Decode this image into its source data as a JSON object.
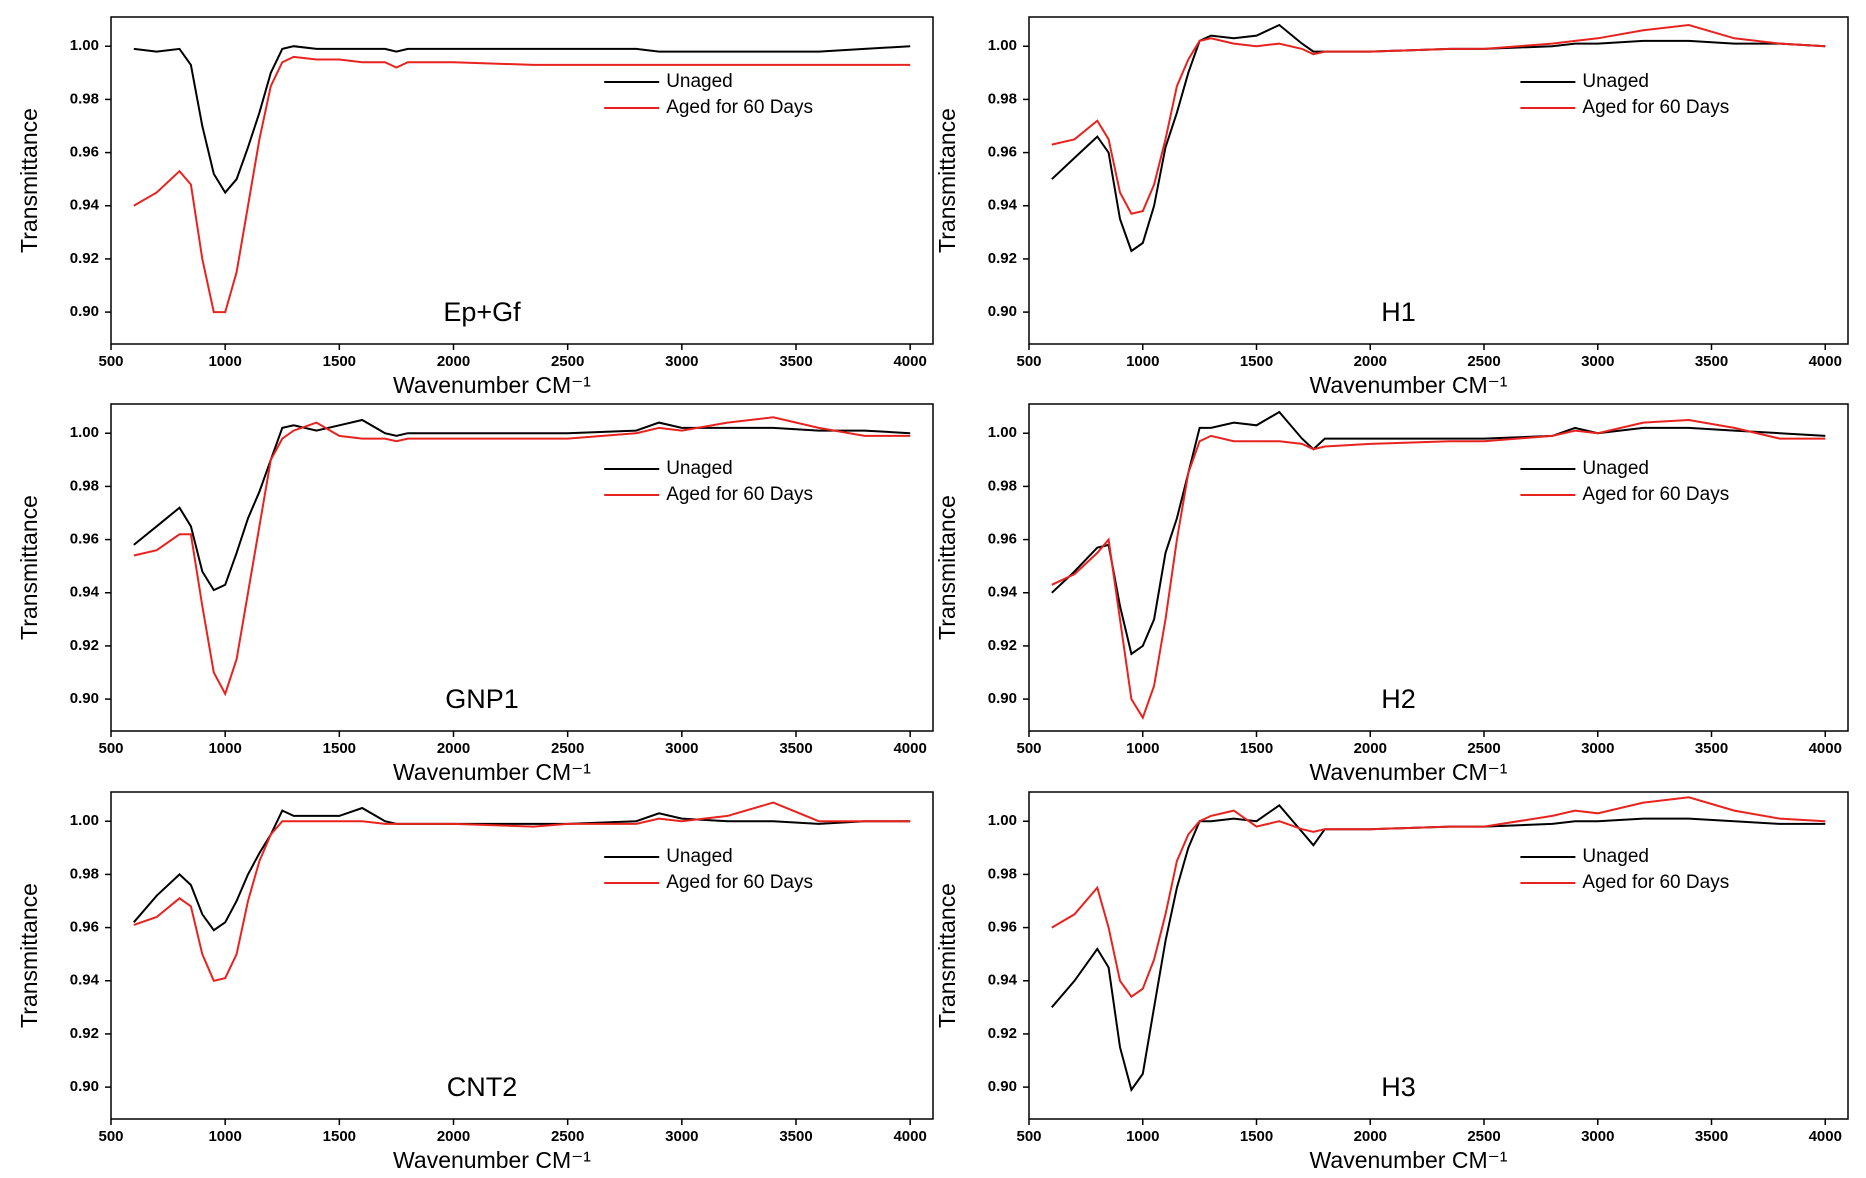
{
  "chart_data": [
    {
      "type": "line",
      "title": "Ep+Gf",
      "xlabel": "Wavenumber CM⁻¹",
      "ylabel": "Transmittance",
      "x": [
        600,
        700,
        800,
        850,
        900,
        950,
        1000,
        1050,
        1100,
        1150,
        1200,
        1250,
        1300,
        1400,
        1500,
        1600,
        1700,
        1750,
        1800,
        2000,
        2350,
        2500,
        2800,
        2900,
        3000,
        3200,
        3400,
        3600,
        3800,
        4000
      ],
      "series": [
        {
          "name": "Unaged",
          "color": "#000000",
          "values": [
            0.999,
            0.998,
            0.999,
            0.993,
            0.97,
            0.952,
            0.945,
            0.95,
            0.962,
            0.975,
            0.99,
            0.999,
            1.0,
            0.999,
            0.999,
            0.999,
            0.999,
            0.998,
            0.999,
            0.999,
            0.999,
            0.999,
            0.999,
            0.998,
            0.998,
            0.998,
            0.998,
            0.998,
            0.999,
            1.0
          ]
        },
        {
          "name": "Aged for 60 Days",
          "color": "#e8231f",
          "values": [
            0.94,
            0.945,
            0.953,
            0.948,
            0.92,
            0.9,
            0.9,
            0.915,
            0.94,
            0.965,
            0.985,
            0.994,
            0.996,
            0.995,
            0.995,
            0.994,
            0.994,
            0.992,
            0.994,
            0.994,
            0.993,
            0.993,
            0.993,
            0.993,
            0.993,
            0.993,
            0.993,
            0.993,
            0.993,
            0.993
          ]
        }
      ],
      "xlim": [
        500,
        4100
      ],
      "xticks": [
        500,
        1000,
        1500,
        2000,
        2500,
        3000,
        3500,
        4000
      ],
      "ylim": [
        0.888,
        1.011
      ],
      "yticks": [
        {
          "value": 0.9,
          "label": "0.90"
        },
        0.92,
        0.94,
        0.96,
        0.98,
        {
          "value": 1,
          "label": "1.00"
        }
      ],
      "grid": false,
      "legend": "upper right"
    },
    {
      "type": "line",
      "title": "H1",
      "xlabel": "Wavenumber CM⁻¹",
      "ylabel": "Transmittance",
      "x": [
        600,
        700,
        800,
        850,
        900,
        950,
        1000,
        1050,
        1100,
        1150,
        1200,
        1250,
        1300,
        1400,
        1500,
        1600,
        1700,
        1750,
        1800,
        2000,
        2350,
        2500,
        2800,
        2900,
        3000,
        3200,
        3400,
        3600,
        3800,
        4000
      ],
      "series": [
        {
          "name": "Unaged",
          "color": "#000000",
          "values": [
            0.95,
            0.958,
            0.966,
            0.96,
            0.935,
            0.923,
            0.926,
            0.94,
            0.962,
            0.975,
            0.99,
            1.002,
            1.004,
            1.003,
            1.004,
            1.008,
            1.001,
            0.998,
            0.998,
            0.998,
            0.999,
            0.999,
            1.0,
            1.001,
            1.001,
            1.002,
            1.002,
            1.001,
            1.001,
            1.0
          ]
        },
        {
          "name": "Aged for 60 Days",
          "color": "#e8231f",
          "values": [
            0.963,
            0.965,
            0.972,
            0.965,
            0.945,
            0.937,
            0.938,
            0.948,
            0.965,
            0.985,
            0.995,
            1.002,
            1.003,
            1.001,
            1.0,
            1.001,
            0.999,
            0.997,
            0.998,
            0.998,
            0.999,
            0.999,
            1.001,
            1.002,
            1.003,
            1.006,
            1.008,
            1.003,
            1.001,
            1.0
          ]
        }
      ],
      "xlim": [
        500,
        4100
      ],
      "xticks": [
        500,
        1000,
        1500,
        2000,
        2500,
        3000,
        3500,
        4000
      ],
      "ylim": [
        0.888,
        1.011
      ],
      "yticks": [
        {
          "value": 0.9,
          "label": "0.90"
        },
        0.92,
        0.94,
        0.96,
        0.98,
        {
          "value": 1,
          "label": "1.00"
        }
      ],
      "grid": false,
      "legend": "upper right"
    },
    {
      "type": "line",
      "title": "GNP1",
      "xlabel": "Wavenumber CM⁻¹",
      "ylabel": "Transmittance",
      "x": [
        600,
        700,
        800,
        850,
        900,
        950,
        1000,
        1050,
        1100,
        1150,
        1200,
        1250,
        1300,
        1400,
        1500,
        1600,
        1700,
        1750,
        1800,
        2000,
        2350,
        2500,
        2800,
        2900,
        3000,
        3200,
        3400,
        3600,
        3800,
        4000
      ],
      "series": [
        {
          "name": "Unaged",
          "color": "#000000",
          "values": [
            0.958,
            0.965,
            0.972,
            0.965,
            0.948,
            0.941,
            0.943,
            0.955,
            0.968,
            0.978,
            0.99,
            1.002,
            1.003,
            1.001,
            1.003,
            1.005,
            1.0,
            0.999,
            1.0,
            1.0,
            1.0,
            1.0,
            1.001,
            1.004,
            1.002,
            1.002,
            1.002,
            1.001,
            1.001,
            1.0
          ]
        },
        {
          "name": "Aged for 60 Days",
          "color": "#e8231f",
          "values": [
            0.954,
            0.956,
            0.962,
            0.962,
            0.935,
            0.91,
            0.902,
            0.915,
            0.94,
            0.965,
            0.99,
            0.998,
            1.001,
            1.004,
            0.999,
            0.998,
            0.998,
            0.997,
            0.998,
            0.998,
            0.998,
            0.998,
            1.0,
            1.002,
            1.001,
            1.004,
            1.006,
            1.002,
            0.999,
            0.999
          ]
        }
      ],
      "xlim": [
        500,
        4100
      ],
      "xticks": [
        500,
        1000,
        1500,
        2000,
        2500,
        3000,
        3500,
        4000
      ],
      "ylim": [
        0.888,
        1.011
      ],
      "yticks": [
        {
          "value": 0.9,
          "label": "0.90"
        },
        0.92,
        0.94,
        0.96,
        0.98,
        {
          "value": 1,
          "label": "1.00"
        }
      ],
      "grid": false,
      "legend": "upper right"
    },
    {
      "type": "line",
      "title": "H2",
      "xlabel": "Wavenumber CM⁻¹",
      "ylabel": "Transmittance",
      "x": [
        600,
        700,
        800,
        850,
        900,
        950,
        1000,
        1050,
        1100,
        1150,
        1200,
        1250,
        1300,
        1400,
        1500,
        1600,
        1700,
        1750,
        1800,
        2000,
        2350,
        2500,
        2800,
        2900,
        3000,
        3200,
        3400,
        3600,
        3800,
        4000
      ],
      "series": [
        {
          "name": "Unaged",
          "color": "#000000",
          "values": [
            0.94,
            0.948,
            0.957,
            0.958,
            0.935,
            0.917,
            0.92,
            0.93,
            0.955,
            0.968,
            0.985,
            1.002,
            1.002,
            1.004,
            1.003,
            1.008,
            0.998,
            0.994,
            0.998,
            0.998,
            0.998,
            0.998,
            0.999,
            1.002,
            1.0,
            1.002,
            1.002,
            1.001,
            1.0,
            0.999
          ]
        },
        {
          "name": "Aged for 60 Days",
          "color": "#e8231f",
          "values": [
            0.943,
            0.947,
            0.955,
            0.96,
            0.93,
            0.9,
            0.893,
            0.905,
            0.93,
            0.96,
            0.985,
            0.997,
            0.999,
            0.997,
            0.997,
            0.997,
            0.996,
            0.994,
            0.995,
            0.996,
            0.997,
            0.997,
            0.999,
            1.001,
            1.0,
            1.004,
            1.005,
            1.002,
            0.998,
            0.998
          ]
        }
      ],
      "xlim": [
        500,
        4100
      ],
      "xticks": [
        500,
        1000,
        1500,
        2000,
        2500,
        3000,
        3500,
        4000
      ],
      "ylim": [
        0.888,
        1.011
      ],
      "yticks": [
        {
          "value": 0.9,
          "label": "0.90"
        },
        0.92,
        0.94,
        0.96,
        0.98,
        {
          "value": 1,
          "label": "1.00"
        }
      ],
      "grid": false,
      "legend": "upper right"
    },
    {
      "type": "line",
      "title": "CNT2",
      "xlabel": "Wavenumber CM⁻¹",
      "ylabel": "Transmittance",
      "x": [
        600,
        700,
        800,
        850,
        900,
        950,
        1000,
        1050,
        1100,
        1150,
        1200,
        1250,
        1300,
        1400,
        1500,
        1600,
        1700,
        1750,
        1800,
        2000,
        2350,
        2500,
        2800,
        2900,
        3000,
        3200,
        3400,
        3600,
        3800,
        4000
      ],
      "series": [
        {
          "name": "Unaged",
          "color": "#000000",
          "values": [
            0.962,
            0.972,
            0.98,
            0.976,
            0.965,
            0.959,
            0.962,
            0.97,
            0.98,
            0.988,
            0.995,
            1.004,
            1.002,
            1.002,
            1.002,
            1.005,
            1.0,
            0.999,
            0.999,
            0.999,
            0.999,
            0.999,
            1.0,
            1.003,
            1.001,
            1.0,
            1.0,
            0.999,
            1.0,
            1.0
          ]
        },
        {
          "name": "Aged for 60 Days",
          "color": "#e8231f",
          "values": [
            0.961,
            0.964,
            0.971,
            0.968,
            0.95,
            0.94,
            0.941,
            0.95,
            0.97,
            0.985,
            0.995,
            1.0,
            1.0,
            1.0,
            1.0,
            1.0,
            0.999,
            0.999,
            0.999,
            0.999,
            0.998,
            0.999,
            0.999,
            1.001,
            1.0,
            1.002,
            1.007,
            1.0,
            1.0,
            1.0
          ]
        }
      ],
      "xlim": [
        500,
        4100
      ],
      "xticks": [
        500,
        1000,
        1500,
        2000,
        2500,
        3000,
        3500,
        4000
      ],
      "ylim": [
        0.888,
        1.011
      ],
      "yticks": [
        {
          "value": 0.9,
          "label": "0.90"
        },
        0.92,
        0.94,
        0.96,
        0.98,
        {
          "value": 1,
          "label": "1.00"
        }
      ],
      "grid": false,
      "legend": "upper right"
    },
    {
      "type": "line",
      "title": "H3",
      "xlabel": "Wavenumber CM⁻¹",
      "ylabel": "Transmittance",
      "x": [
        600,
        700,
        800,
        850,
        900,
        950,
        1000,
        1050,
        1100,
        1150,
        1200,
        1250,
        1300,
        1400,
        1500,
        1600,
        1700,
        1750,
        1800,
        2000,
        2350,
        2500,
        2800,
        2900,
        3000,
        3200,
        3400,
        3600,
        3800,
        4000
      ],
      "series": [
        {
          "name": "Unaged",
          "color": "#000000",
          "values": [
            0.93,
            0.94,
            0.952,
            0.945,
            0.915,
            0.899,
            0.905,
            0.93,
            0.955,
            0.975,
            0.99,
            1.0,
            1.0,
            1.001,
            1.0,
            1.006,
            0.996,
            0.991,
            0.997,
            0.997,
            0.998,
            0.998,
            0.999,
            1.0,
            1.0,
            1.001,
            1.001,
            1.0,
            0.999,
            0.999
          ]
        },
        {
          "name": "Aged for 60 Days",
          "color": "#e8231f",
          "values": [
            0.96,
            0.965,
            0.975,
            0.96,
            0.94,
            0.934,
            0.937,
            0.948,
            0.965,
            0.985,
            0.995,
            1.0,
            1.002,
            1.004,
            0.998,
            1.0,
            0.997,
            0.996,
            0.997,
            0.997,
            0.998,
            0.998,
            1.002,
            1.004,
            1.003,
            1.007,
            1.009,
            1.004,
            1.001,
            1.0
          ]
        }
      ],
      "xlim": [
        500,
        4100
      ],
      "xticks": [
        500,
        1000,
        1500,
        2000,
        2500,
        3000,
        3500,
        4000
      ],
      "ylim": [
        0.888,
        1.011
      ],
      "yticks": [
        {
          "value": 0.9,
          "label": "0.90"
        },
        0.92,
        0.94,
        0.96,
        0.98,
        {
          "value": 1,
          "label": "1.00"
        }
      ],
      "grid": false,
      "legend": "upper right"
    }
  ]
}
